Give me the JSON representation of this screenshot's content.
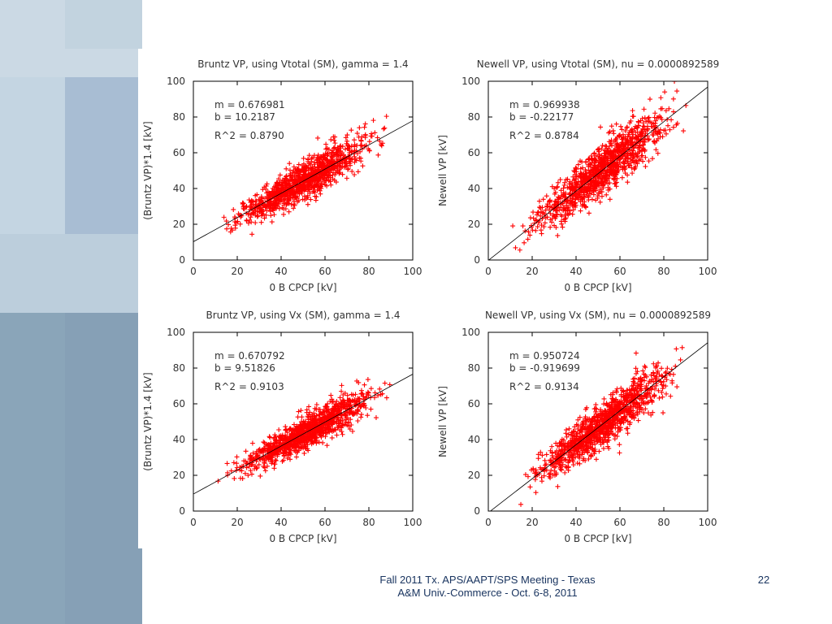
{
  "slide": {
    "footer_line1": "Fall 2011 Tx. APS/AAPT/SPS Meeting - Texas",
    "footer_line2": "A&M Univ.-Commerce - Oct. 6-8, 2011",
    "page_number": "22",
    "colors": {
      "panel_light": "#c9d8e4",
      "panel_mid": "#a9bfd5",
      "panel_dark": "#86a3b8",
      "marker": "#ff0000",
      "fit_line": "#000000"
    }
  },
  "chart_data": [
    {
      "type": "scatter",
      "title": "Bruntz VP, using Vtotal (SM), gamma = 1.4",
      "xlabel": "0 B CPCP [kV]",
      "ylabel": "(Bruntz VP)*1.4 [kV]",
      "xlim": [
        0,
        100
      ],
      "ylim": [
        0,
        100
      ],
      "xticks": [
        "0",
        "20",
        "40",
        "60",
        "80",
        "100"
      ],
      "yticks": [
        "0",
        "20",
        "40",
        "60",
        "80",
        "100"
      ],
      "fit": {
        "m": 0.676981,
        "b": 10.2187
      },
      "annotations": [
        "m = 0.676981",
        "b = 10.2187",
        "R^2 = 0.8790"
      ],
      "cloud": {
        "x_range": [
          10,
          92
        ],
        "spread": 5.5,
        "marker": "+"
      }
    },
    {
      "type": "scatter",
      "title": "Newell VP, using Vtotal (SM), nu = 0.0000892589",
      "xlabel": "0 B CPCP [kV]",
      "ylabel": "Newell VP [kV]",
      "xlim": [
        0,
        100
      ],
      "ylim": [
        0,
        100
      ],
      "xticks": [
        "0",
        "20",
        "40",
        "60",
        "80",
        "100"
      ],
      "yticks": [
        "0",
        "20",
        "40",
        "60",
        "80",
        "100"
      ],
      "fit": {
        "m": 0.969938,
        "b": -0.22177
      },
      "annotations": [
        "m = 0.969938",
        "b = -0.22177",
        "R^2 = 0.8784"
      ],
      "cloud": {
        "x_range": [
          11,
          92
        ],
        "spread": 7.5,
        "marker": "+"
      }
    },
    {
      "type": "scatter",
      "title": "Bruntz VP, using Vx (SM), gamma = 1.4",
      "xlabel": "0 B CPCP [kV]",
      "ylabel": "(Bruntz VP)*1.4 [kV]",
      "xlim": [
        0,
        100
      ],
      "ylim": [
        0,
        100
      ],
      "xticks": [
        "0",
        "20",
        "40",
        "60",
        "80",
        "100"
      ],
      "yticks": [
        "0",
        "20",
        "40",
        "60",
        "80",
        "100"
      ],
      "fit": {
        "m": 0.670792,
        "b": 9.51826
      },
      "annotations": [
        "m = 0.670792",
        "b = 9.51826",
        "R^2 = 0.9103"
      ],
      "cloud": {
        "x_range": [
          10,
          92
        ],
        "spread": 4.8,
        "marker": "+"
      }
    },
    {
      "type": "scatter",
      "title": "Newell VP, using Vx (SM), nu = 0.0000892589",
      "xlabel": "0 B CPCP [kV]",
      "ylabel": "Newell VP [kV]",
      "xlim": [
        0,
        100
      ],
      "ylim": [
        0,
        100
      ],
      "xticks": [
        "0",
        "20",
        "40",
        "60",
        "80",
        "100"
      ],
      "yticks": [
        "0",
        "20",
        "40",
        "60",
        "80",
        "100"
      ],
      "fit": {
        "m": 0.950724,
        "b": -0.919699
      },
      "annotations": [
        "m = 0.950724",
        "b = -0.919699",
        "R^2 = 0.9134"
      ],
      "cloud": {
        "x_range": [
          11,
          92
        ],
        "spread": 6.8,
        "marker": "+"
      }
    }
  ]
}
